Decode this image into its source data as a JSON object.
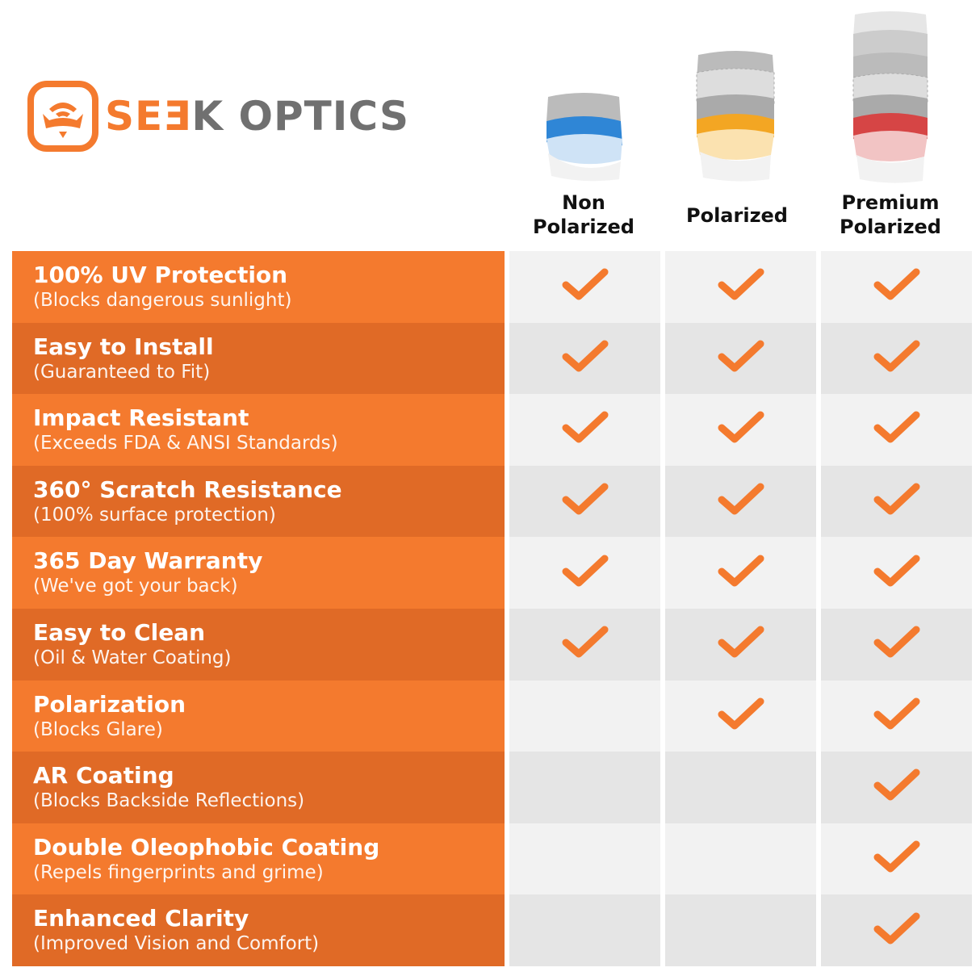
{
  "brand": {
    "name_part1": "SEƎ",
    "name_part2": "K OPTICS",
    "accent": "#f47a2e",
    "grey": "#707070"
  },
  "columns": [
    {
      "label_line1": "Non",
      "label_line2": "Polarized",
      "lens_color": "#2f86d6"
    },
    {
      "label_line1": "",
      "label_line2": "Polarized",
      "lens_color": "#f3a623"
    },
    {
      "label_line1": "Premium",
      "label_line2": "Polarized",
      "lens_color": "#d64545"
    }
  ],
  "features": [
    {
      "title": "100% UV Protection",
      "subtitle": "(Blocks dangerous sunlight)",
      "checks": [
        true,
        true,
        true
      ]
    },
    {
      "title": "Easy to Install",
      "subtitle": "(Guaranteed to Fit)",
      "checks": [
        true,
        true,
        true
      ]
    },
    {
      "title": "Impact Resistant",
      "subtitle": "(Exceeds FDA & ANSI Standards)",
      "checks": [
        true,
        true,
        true
      ]
    },
    {
      "title": "360° Scratch Resistance",
      "subtitle": "(100% surface protection)",
      "checks": [
        true,
        true,
        true
      ]
    },
    {
      "title": "365 Day Warranty",
      "subtitle": "(We've got your back)",
      "checks": [
        true,
        true,
        true
      ]
    },
    {
      "title": "Easy to Clean",
      "subtitle": "(Oil & Water Coating)",
      "checks": [
        true,
        true,
        true
      ]
    },
    {
      "title": "Polarization",
      "subtitle": "(Blocks Glare)",
      "checks": [
        false,
        true,
        true
      ]
    },
    {
      "title": "AR Coating",
      "subtitle": "(Blocks Backside Reflections)",
      "checks": [
        false,
        false,
        true
      ]
    },
    {
      "title": "Double Oleophobic Coating",
      "subtitle": "(Repels fingerprints and grime)",
      "checks": [
        false,
        false,
        true
      ]
    },
    {
      "title": "Enhanced Clarity",
      "subtitle": "(Improved Vision and Comfort)",
      "checks": [
        false,
        false,
        true
      ]
    }
  ]
}
